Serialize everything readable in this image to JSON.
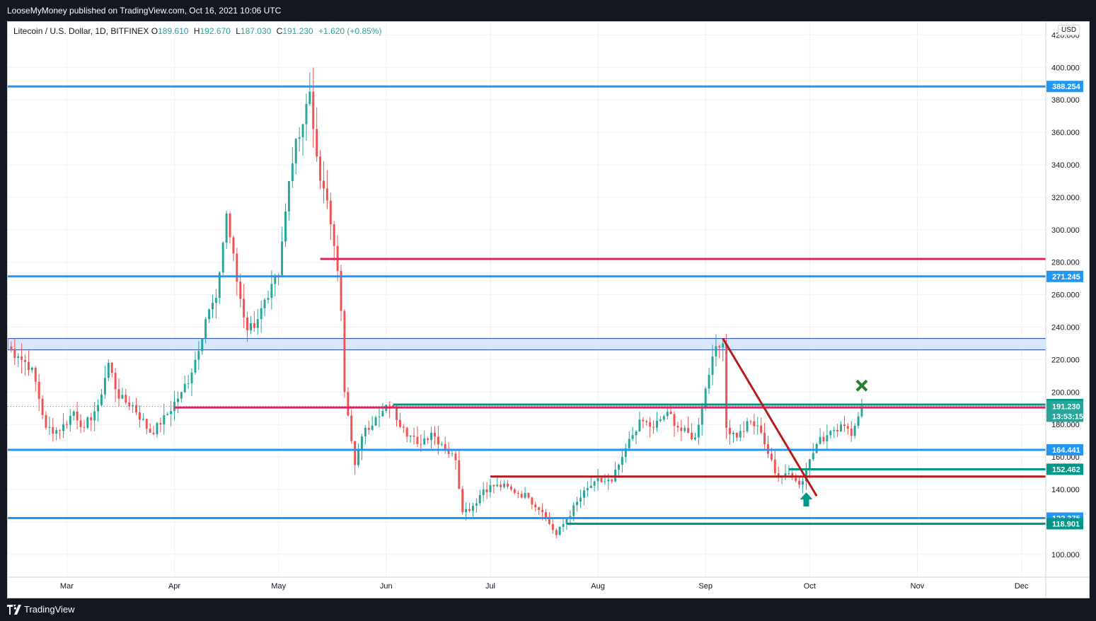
{
  "header": {
    "publisher_text": "LooseMyMoney published on TradingView.com, Oct 16, 2021 10:06 UTC"
  },
  "legend": {
    "symbol": "Litecoin / U.S. Dollar, 1D, BITFINEX",
    "open_label": "O",
    "open": "189.610",
    "high_label": "H",
    "high": "192.670",
    "low_label": "L",
    "low": "187.030",
    "close_label": "C",
    "close": "191.230",
    "change": "+1.620 (+0.85%)"
  },
  "currency": "USD",
  "footer": {
    "brand": "TradingView"
  },
  "colors": {
    "up": "#26a69a",
    "down": "#ef5350",
    "support_blue": "#2196f3",
    "crimson_line": "#e91e63",
    "dark_red": "#b71c1c",
    "teal": "#009688",
    "zone_fill": "#d8e7fb",
    "zone_border": "#1e40af"
  },
  "chart_data": {
    "type": "candlestick",
    "symbol": "Litecoin / U.S. Dollar",
    "interval": "1D",
    "exchange": "BITFINEX",
    "x_range": [
      "2021-02-12",
      "2021-12-08"
    ],
    "y_range": [
      86,
      428
    ],
    "y_ticks": [
      100,
      120,
      140,
      160,
      180,
      200,
      220,
      240,
      260,
      280,
      300,
      320,
      340,
      360,
      380,
      400,
      420
    ],
    "y_tick_labels": [
      "100.000",
      "120.000",
      "140.000",
      "160.000",
      "180.000",
      "200.000",
      "220.000",
      "240.000",
      "260.000",
      "280.000",
      "300.000",
      "320.000",
      "340.000",
      "360.000",
      "380.000",
      "400.000",
      "420.000"
    ],
    "x_ticks": [
      {
        "date": "2021-03-01",
        "label": "Mar"
      },
      {
        "date": "2021-04-01",
        "label": "Apr"
      },
      {
        "date": "2021-05-01",
        "label": "May"
      },
      {
        "date": "2021-06-01",
        "label": "Jun"
      },
      {
        "date": "2021-07-01",
        "label": "Jul"
      },
      {
        "date": "2021-08-01",
        "label": "Aug"
      },
      {
        "date": "2021-09-01",
        "label": "Sep"
      },
      {
        "date": "2021-10-01",
        "label": "Oct"
      },
      {
        "date": "2021-11-01",
        "label": "Nov"
      },
      {
        "date": "2021-12-01",
        "label": "Dec"
      }
    ],
    "close_anchors": [
      [
        "2021-02-12",
        228
      ],
      [
        "2021-02-15",
        222
      ],
      [
        "2021-02-19",
        215
      ],
      [
        "2021-02-23",
        178
      ],
      [
        "2021-02-27",
        176
      ],
      [
        "2021-03-03",
        188
      ],
      [
        "2021-03-06",
        178
      ],
      [
        "2021-03-10",
        192
      ],
      [
        "2021-03-13",
        218
      ],
      [
        "2021-03-16",
        196
      ],
      [
        "2021-03-20",
        192
      ],
      [
        "2021-03-25",
        175
      ],
      [
        "2021-03-28",
        180
      ],
      [
        "2021-04-03",
        200
      ],
      [
        "2021-04-06",
        212
      ],
      [
        "2021-04-10",
        245
      ],
      [
        "2021-04-13",
        258
      ],
      [
        "2021-04-16",
        310
      ],
      [
        "2021-04-19",
        268
      ],
      [
        "2021-04-22",
        238
      ],
      [
        "2021-04-25",
        245
      ],
      [
        "2021-04-28",
        258
      ],
      [
        "2021-05-01",
        272
      ],
      [
        "2021-05-04",
        330
      ],
      [
        "2021-05-06",
        356
      ],
      [
        "2021-05-08",
        365
      ],
      [
        "2021-05-10",
        385
      ],
      [
        "2021-05-12",
        345
      ],
      [
        "2021-05-15",
        318
      ],
      [
        "2021-05-17",
        290
      ],
      [
        "2021-05-19",
        250
      ],
      [
        "2021-05-20",
        200
      ],
      [
        "2021-05-23",
        155
      ],
      [
        "2021-05-26",
        178
      ],
      [
        "2021-05-30",
        185
      ],
      [
        "2021-06-02",
        192
      ],
      [
        "2021-06-06",
        178
      ],
      [
        "2021-06-10",
        168
      ],
      [
        "2021-06-14",
        175
      ],
      [
        "2021-06-17",
        168
      ],
      [
        "2021-06-21",
        158
      ],
      [
        "2021-06-23",
        126
      ],
      [
        "2021-06-26",
        130
      ],
      [
        "2021-06-29",
        140
      ],
      [
        "2021-07-03",
        143
      ],
      [
        "2021-07-07",
        140
      ],
      [
        "2021-07-12",
        135
      ],
      [
        "2021-07-16",
        126
      ],
      [
        "2021-07-20",
        112
      ],
      [
        "2021-07-23",
        122
      ],
      [
        "2021-07-27",
        135
      ],
      [
        "2021-07-31",
        145
      ],
      [
        "2021-08-05",
        145
      ],
      [
        "2021-08-08",
        160
      ],
      [
        "2021-08-13",
        183
      ],
      [
        "2021-08-17",
        178
      ],
      [
        "2021-08-21",
        188
      ],
      [
        "2021-08-25",
        176
      ],
      [
        "2021-08-29",
        172
      ],
      [
        "2021-09-03",
        222
      ],
      [
        "2021-09-06",
        230
      ],
      [
        "2021-09-07",
        178
      ],
      [
        "2021-09-10",
        172
      ],
      [
        "2021-09-14",
        182
      ],
      [
        "2021-09-17",
        175
      ],
      [
        "2021-09-21",
        150
      ],
      [
        "2021-09-25",
        150
      ],
      [
        "2021-09-28",
        143
      ],
      [
        "2021-09-30",
        152
      ],
      [
        "2021-10-03",
        168
      ],
      [
        "2021-10-07",
        176
      ],
      [
        "2021-10-10",
        180
      ],
      [
        "2021-10-13",
        173
      ],
      [
        "2021-10-15",
        185
      ],
      [
        "2021-10-16",
        191.23
      ]
    ],
    "horizontal_levels": [
      {
        "value": 388.254,
        "label": "388.254",
        "color": "#2196f3",
        "start": "2021-02-12"
      },
      {
        "value": 282,
        "color": "#e91e63",
        "start": "2021-05-13"
      },
      {
        "value": 271.245,
        "label": "271.245",
        "color": "#2196f3",
        "start": "2021-02-12"
      },
      {
        "value": 192.311,
        "label": "192.311",
        "color": "#009688",
        "start": "2021-06-03"
      },
      {
        "value": 190.5,
        "color": "#e91e63",
        "start": "2021-04-01"
      },
      {
        "value": 164.441,
        "label": "164.441",
        "color": "#2196f3",
        "start": "2021-02-12"
      },
      {
        "value": 152.462,
        "label": "152.462",
        "color": "#009688",
        "start": "2021-09-25"
      },
      {
        "value": 148,
        "color": "#b71c1c",
        "start": "2021-07-01"
      },
      {
        "value": 122.375,
        "label": "122.375",
        "color": "#2196f3",
        "start": "2021-02-12"
      },
      {
        "value": 118.901,
        "label": "118.901",
        "color": "#009688",
        "start": "2021-07-23"
      }
    ],
    "zones": [
      {
        "from": 226,
        "to": 233,
        "start": "2021-02-12"
      }
    ],
    "trendlines": [
      {
        "from": [
          "2021-09-06",
          233
        ],
        "to": [
          "2021-10-03",
          136
        ],
        "color": "#b71c1c"
      }
    ],
    "last_price": {
      "value": 191.23,
      "label": "191.230",
      "countdown": "13:53:15"
    },
    "markers": [
      {
        "type": "arrow-up",
        "date": "2021-09-30",
        "value": 133,
        "color": "#009688"
      },
      {
        "type": "cross",
        "date": "2021-10-16",
        "value": 204,
        "color": "#2e7d32"
      }
    ]
  }
}
